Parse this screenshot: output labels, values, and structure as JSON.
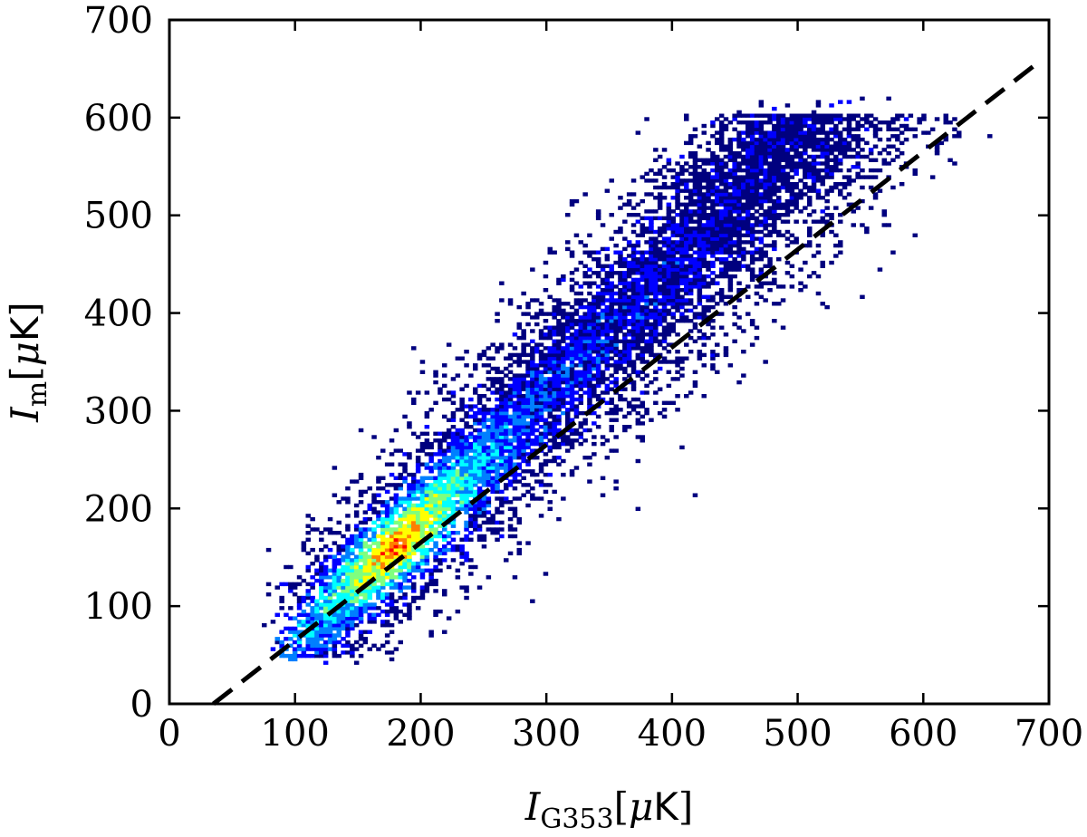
{
  "chart_data": {
    "type": "heatmap",
    "title": "",
    "xlabel": {
      "main": "I",
      "sub": "G353",
      "unit_prefix": "[",
      "unit_mu": "μ",
      "unit_K": "K",
      "unit_suffix": "]"
    },
    "ylabel": {
      "main": "I",
      "sub": "m",
      "unit_prefix": "[",
      "unit_mu": "μ",
      "unit_K": "K",
      "unit_suffix": "]"
    },
    "xlim": [
      0,
      700
    ],
    "ylim": [
      0,
      700
    ],
    "xticks": [
      "0",
      "100",
      "200",
      "300",
      "400",
      "500",
      "600",
      "700"
    ],
    "yticks": [
      "0",
      "100",
      "200",
      "300",
      "400",
      "500",
      "600",
      "700"
    ],
    "grid": false,
    "colormap": [
      "#00007f",
      "#0000ff",
      "#007fff",
      "#00ffff",
      "#7fff7f",
      "#ffff00",
      "#ff7f00",
      "#ff0000"
    ],
    "density_model": {
      "description_ridge": "density concentrated along ridge y ≈ 1.3x - 70",
      "x_range": [
        70,
        690
      ],
      "y_range": [
        40,
        620
      ],
      "peak": {
        "x": 180,
        "y": 150
      }
    },
    "fit_line": {
      "style": "dashed",
      "color": "#000000",
      "points": [
        [
          35,
          0
        ],
        [
          690,
          655
        ]
      ]
    }
  }
}
